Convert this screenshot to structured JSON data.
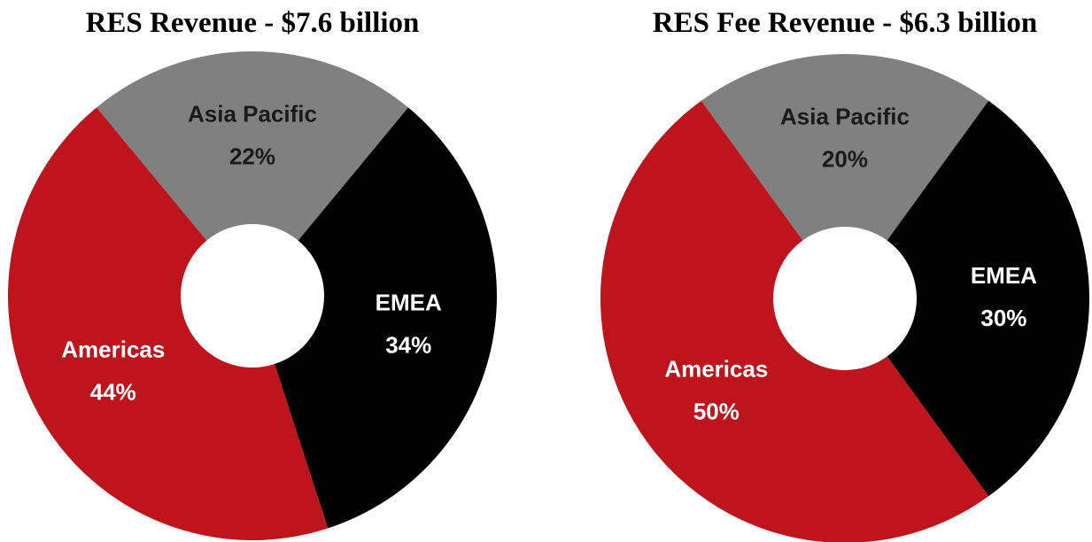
{
  "chart_data": [
    {
      "type": "donut",
      "title": "RES Revenue - $7.6 billion",
      "categories": [
        "Asia Pacific",
        "EMEA",
        "Americas"
      ],
      "values": [
        22,
        34,
        44
      ],
      "value_labels": [
        "22%",
        "34%",
        "44%"
      ],
      "colors": [
        "#808080",
        "#000000",
        "#be141c"
      ]
    },
    {
      "type": "donut",
      "title": "RES Fee Revenue - $6.3 billion",
      "categories": [
        "Asia Pacific",
        "EMEA",
        "Americas"
      ],
      "values": [
        20,
        30,
        50
      ],
      "value_labels": [
        "20%",
        "30%",
        "50%"
      ],
      "colors": [
        "#808080",
        "#000000",
        "#be141c"
      ]
    }
  ]
}
